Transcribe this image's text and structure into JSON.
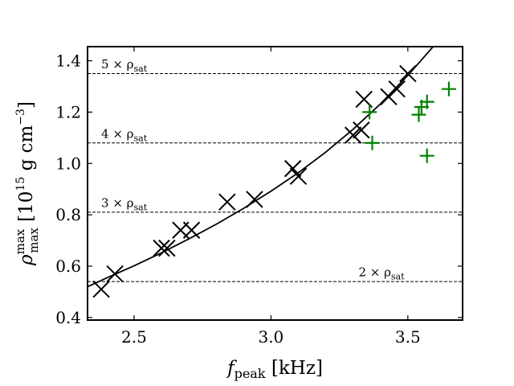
{
  "chart_data": {
    "type": "scatter",
    "title": "",
    "xlabel": {
      "main": "f",
      "sub": "peak",
      "unit": " [kHz]"
    },
    "ylabel": {
      "main": "ρ",
      "sub": "max",
      "sup": "max",
      "unit_pre": " [10",
      "unit_exp": "15",
      "unit_mid": " g cm",
      "unit_exp2": "−3",
      "unit_post": "]"
    },
    "xlim": [
      2.33,
      3.7
    ],
    "ylim": [
      0.39,
      1.455
    ],
    "xticks": [
      2.5,
      3.0,
      3.5
    ],
    "xtick_labels": [
      "2.5",
      "3.0",
      "3.5"
    ],
    "yticks": [
      0.4,
      0.6,
      0.8,
      1.0,
      1.2,
      1.4
    ],
    "ytick_labels": [
      "0.4",
      "0.6",
      "0.8",
      "1.0",
      "1.2",
      "1.4"
    ],
    "grid": false,
    "hlines": [
      {
        "y": 1.35,
        "label": "5 × ρ",
        "sub": "sat",
        "label_x": 2.38,
        "label_y": 1.37
      },
      {
        "y": 1.08,
        "label": "4 × ρ",
        "sub": "sat",
        "label_x": 2.38,
        "label_y": 1.1
      },
      {
        "y": 0.81,
        "label": "3 × ρ",
        "sub": "sat",
        "label_x": 2.38,
        "label_y": 0.83
      },
      {
        "y": 0.54,
        "label": "2 × ρ",
        "sub": "sat",
        "label_x": 3.32,
        "label_y": 0.56
      }
    ],
    "series": [
      {
        "marker": "x",
        "color": "#000000",
        "points": [
          [
            2.38,
            0.51
          ],
          [
            2.43,
            0.57
          ],
          [
            2.6,
            0.67
          ],
          [
            2.62,
            0.67
          ],
          [
            2.67,
            0.74
          ],
          [
            2.71,
            0.74
          ],
          [
            2.84,
            0.85
          ],
          [
            2.94,
            0.86
          ],
          [
            3.08,
            0.98
          ],
          [
            3.1,
            0.95
          ],
          [
            3.3,
            1.11
          ],
          [
            3.33,
            1.13
          ],
          [
            3.34,
            1.25
          ],
          [
            3.43,
            1.26
          ],
          [
            3.46,
            1.29
          ],
          [
            3.5,
            1.35
          ]
        ]
      },
      {
        "marker": "+",
        "color": "#008000",
        "points": [
          [
            3.36,
            1.2
          ],
          [
            3.37,
            1.08
          ],
          [
            3.54,
            1.19
          ],
          [
            3.55,
            1.22
          ],
          [
            3.57,
            1.24
          ],
          [
            3.57,
            1.03
          ],
          [
            3.65,
            1.29
          ]
        ]
      }
    ],
    "fit_line": {
      "color": "#000000",
      "points": [
        [
          2.33,
          0.52
        ],
        [
          2.4,
          0.554
        ],
        [
          2.5,
          0.601
        ],
        [
          2.6,
          0.652
        ],
        [
          2.7,
          0.706
        ],
        [
          2.8,
          0.763
        ],
        [
          2.9,
          0.825
        ],
        [
          3.0,
          0.892
        ],
        [
          3.1,
          0.964
        ],
        [
          3.2,
          1.044
        ],
        [
          3.3,
          1.133
        ],
        [
          3.4,
          1.232
        ],
        [
          3.5,
          1.343
        ],
        [
          3.6,
          1.464
        ],
        [
          3.64,
          1.52
        ]
      ]
    }
  }
}
